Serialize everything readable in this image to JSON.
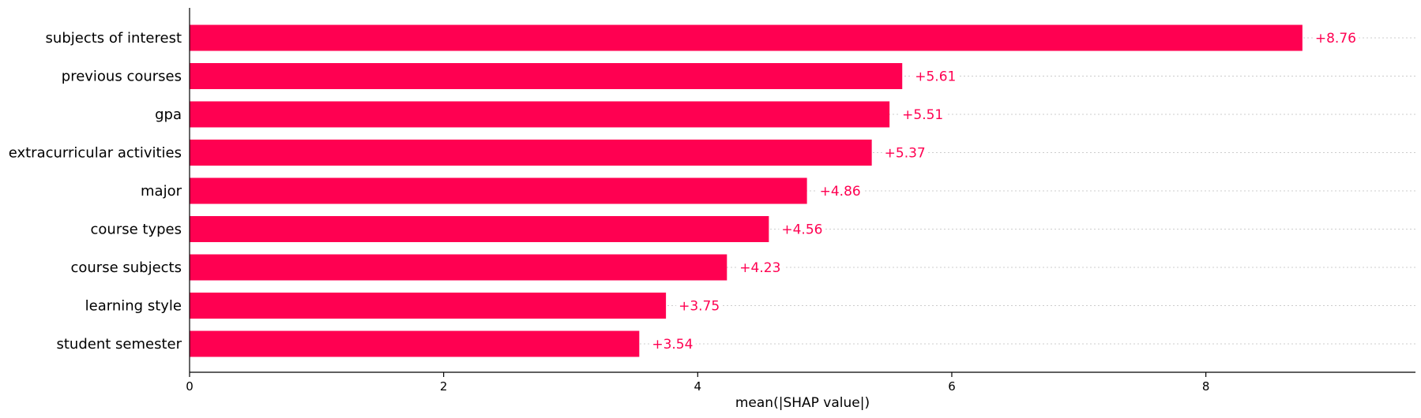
{
  "chart_data": {
    "type": "bar",
    "orientation": "horizontal",
    "categories": [
      "subjects of interest",
      "previous courses",
      "gpa",
      "extracurricular activities",
      "major",
      "course types",
      "course subjects",
      "learning style",
      "student semester"
    ],
    "values": [
      8.76,
      5.61,
      5.51,
      5.37,
      4.86,
      4.56,
      4.23,
      3.75,
      3.54
    ],
    "value_labels": [
      "+8.76",
      "+5.61",
      "+5.51",
      "+5.37",
      "+4.86",
      "+4.56",
      "+4.23",
      "+3.75",
      "+3.54"
    ],
    "title": "",
    "xlabel": "mean(|SHAP value|)",
    "ylabel": "",
    "xlim": [
      0,
      9.65
    ],
    "x_ticks": [
      0,
      2,
      4,
      6,
      8
    ],
    "x_tick_labels": [
      "0",
      "2",
      "4",
      "6",
      "8"
    ],
    "bar_color": "#ff0051",
    "label_color": "#ff0051",
    "grid": "dotted horizontal row guides"
  }
}
